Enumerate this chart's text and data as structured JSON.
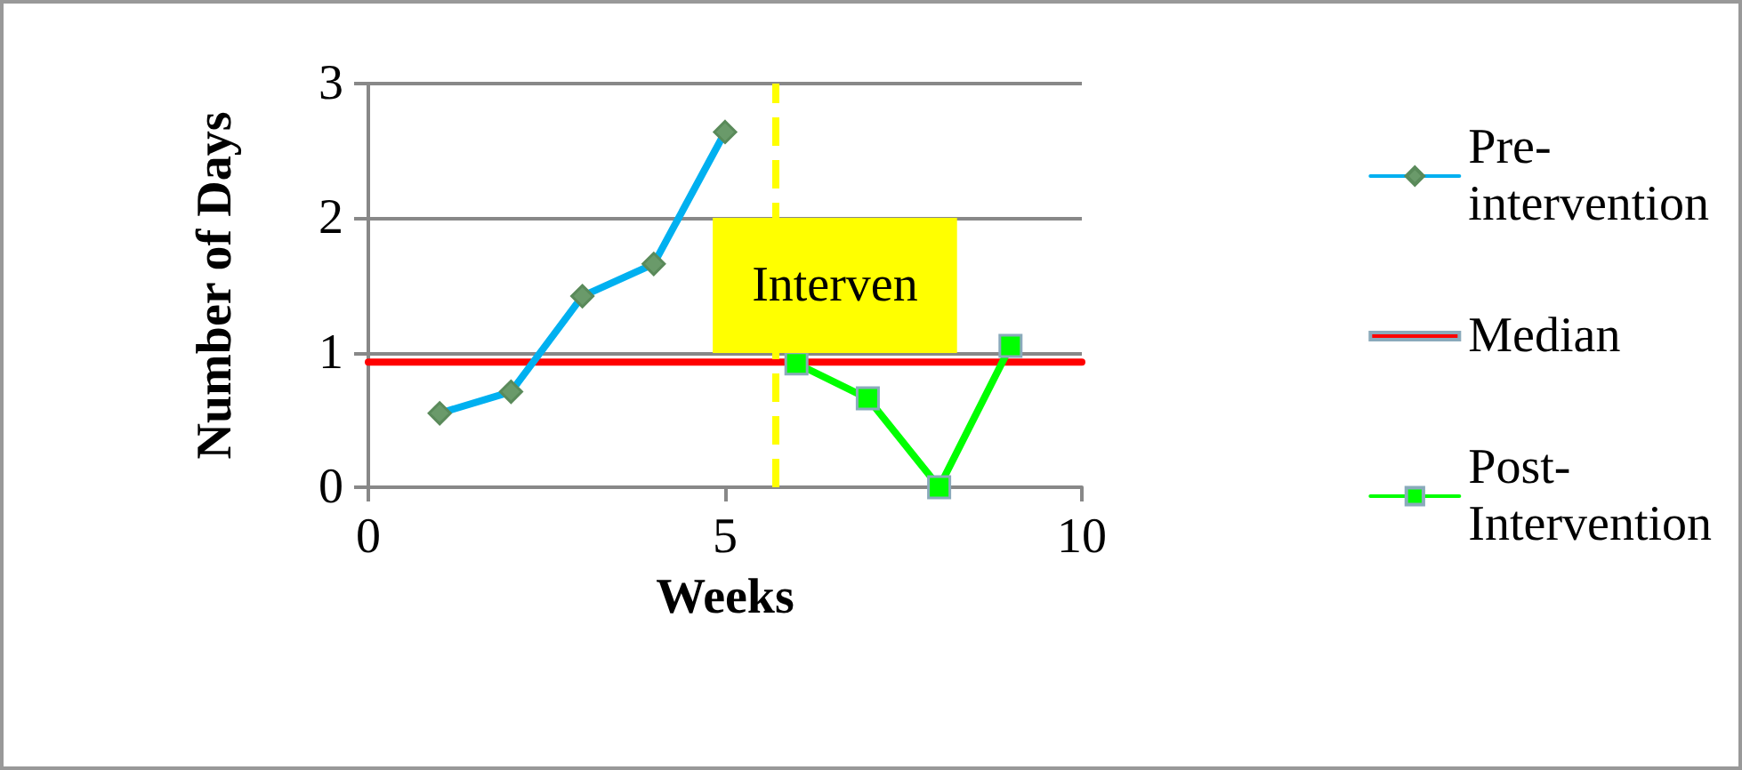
{
  "chart_data": {
    "type": "line",
    "xlabel": "Weeks",
    "ylabel": "Number of Days",
    "series": [
      {
        "name": "Pre-intervention",
        "color": "#00b0f0",
        "marker": "diamond",
        "x": [
          1,
          2,
          3,
          4,
          5
        ],
        "values": [
          0.55,
          0.71,
          1.42,
          1.66,
          2.64
        ]
      },
      {
        "name": "Median",
        "color": "#ff0000",
        "marker": "none",
        "x": [
          0,
          10
        ],
        "values": [
          0.93,
          0.93
        ]
      },
      {
        "name": "Post-Intervention",
        "color": "#00ff00",
        "marker": "square",
        "x": [
          6,
          7,
          8,
          9
        ],
        "values": [
          0.92,
          0.66,
          0,
          1.05
        ]
      }
    ],
    "ref_lines": [
      {
        "axis": "x",
        "value": 5.7,
        "color": "#ffff00",
        "line_style": "dashed"
      }
    ],
    "annotations": [
      {
        "text": "Interven",
        "x": 5.7,
        "y": 1.5
      }
    ],
    "xlim": [
      0,
      10
    ],
    "xticks": [
      0,
      5,
      10
    ],
    "ylim": [
      0,
      3
    ],
    "yticks": [
      0,
      1,
      2,
      3
    ],
    "grid": "y",
    "legend": "right"
  }
}
